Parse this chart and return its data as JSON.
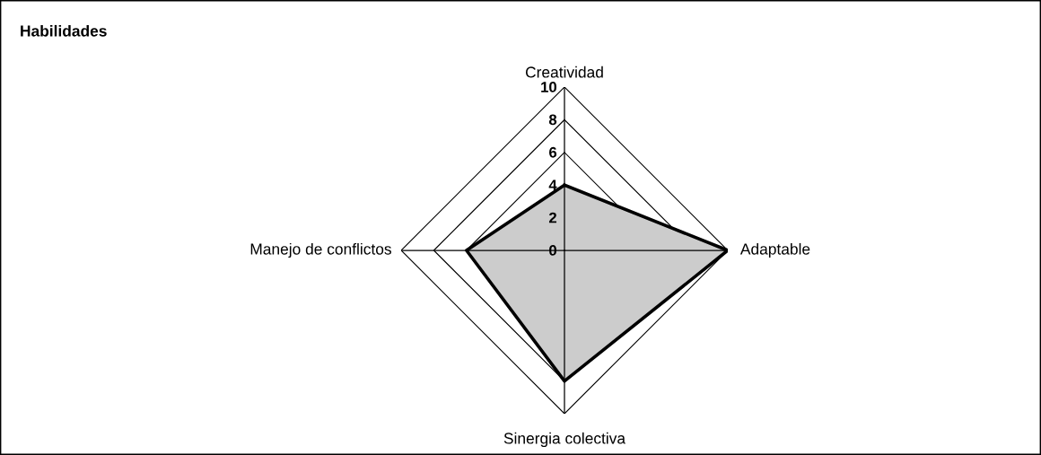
{
  "chart_data": {
    "type": "radar",
    "title": "Habilidades",
    "categories": [
      "Creatividad",
      "Adaptable",
      "Sinergia colectiva",
      "Manejo de conflictos"
    ],
    "series": [
      {
        "color": "#000000",
        "values": [
          4,
          10,
          8,
          6
        ]
      }
    ],
    "ylim": [
      0,
      10
    ],
    "yticks": [
      0,
      2,
      4,
      6,
      8,
      10
    ],
    "grid": true
  }
}
